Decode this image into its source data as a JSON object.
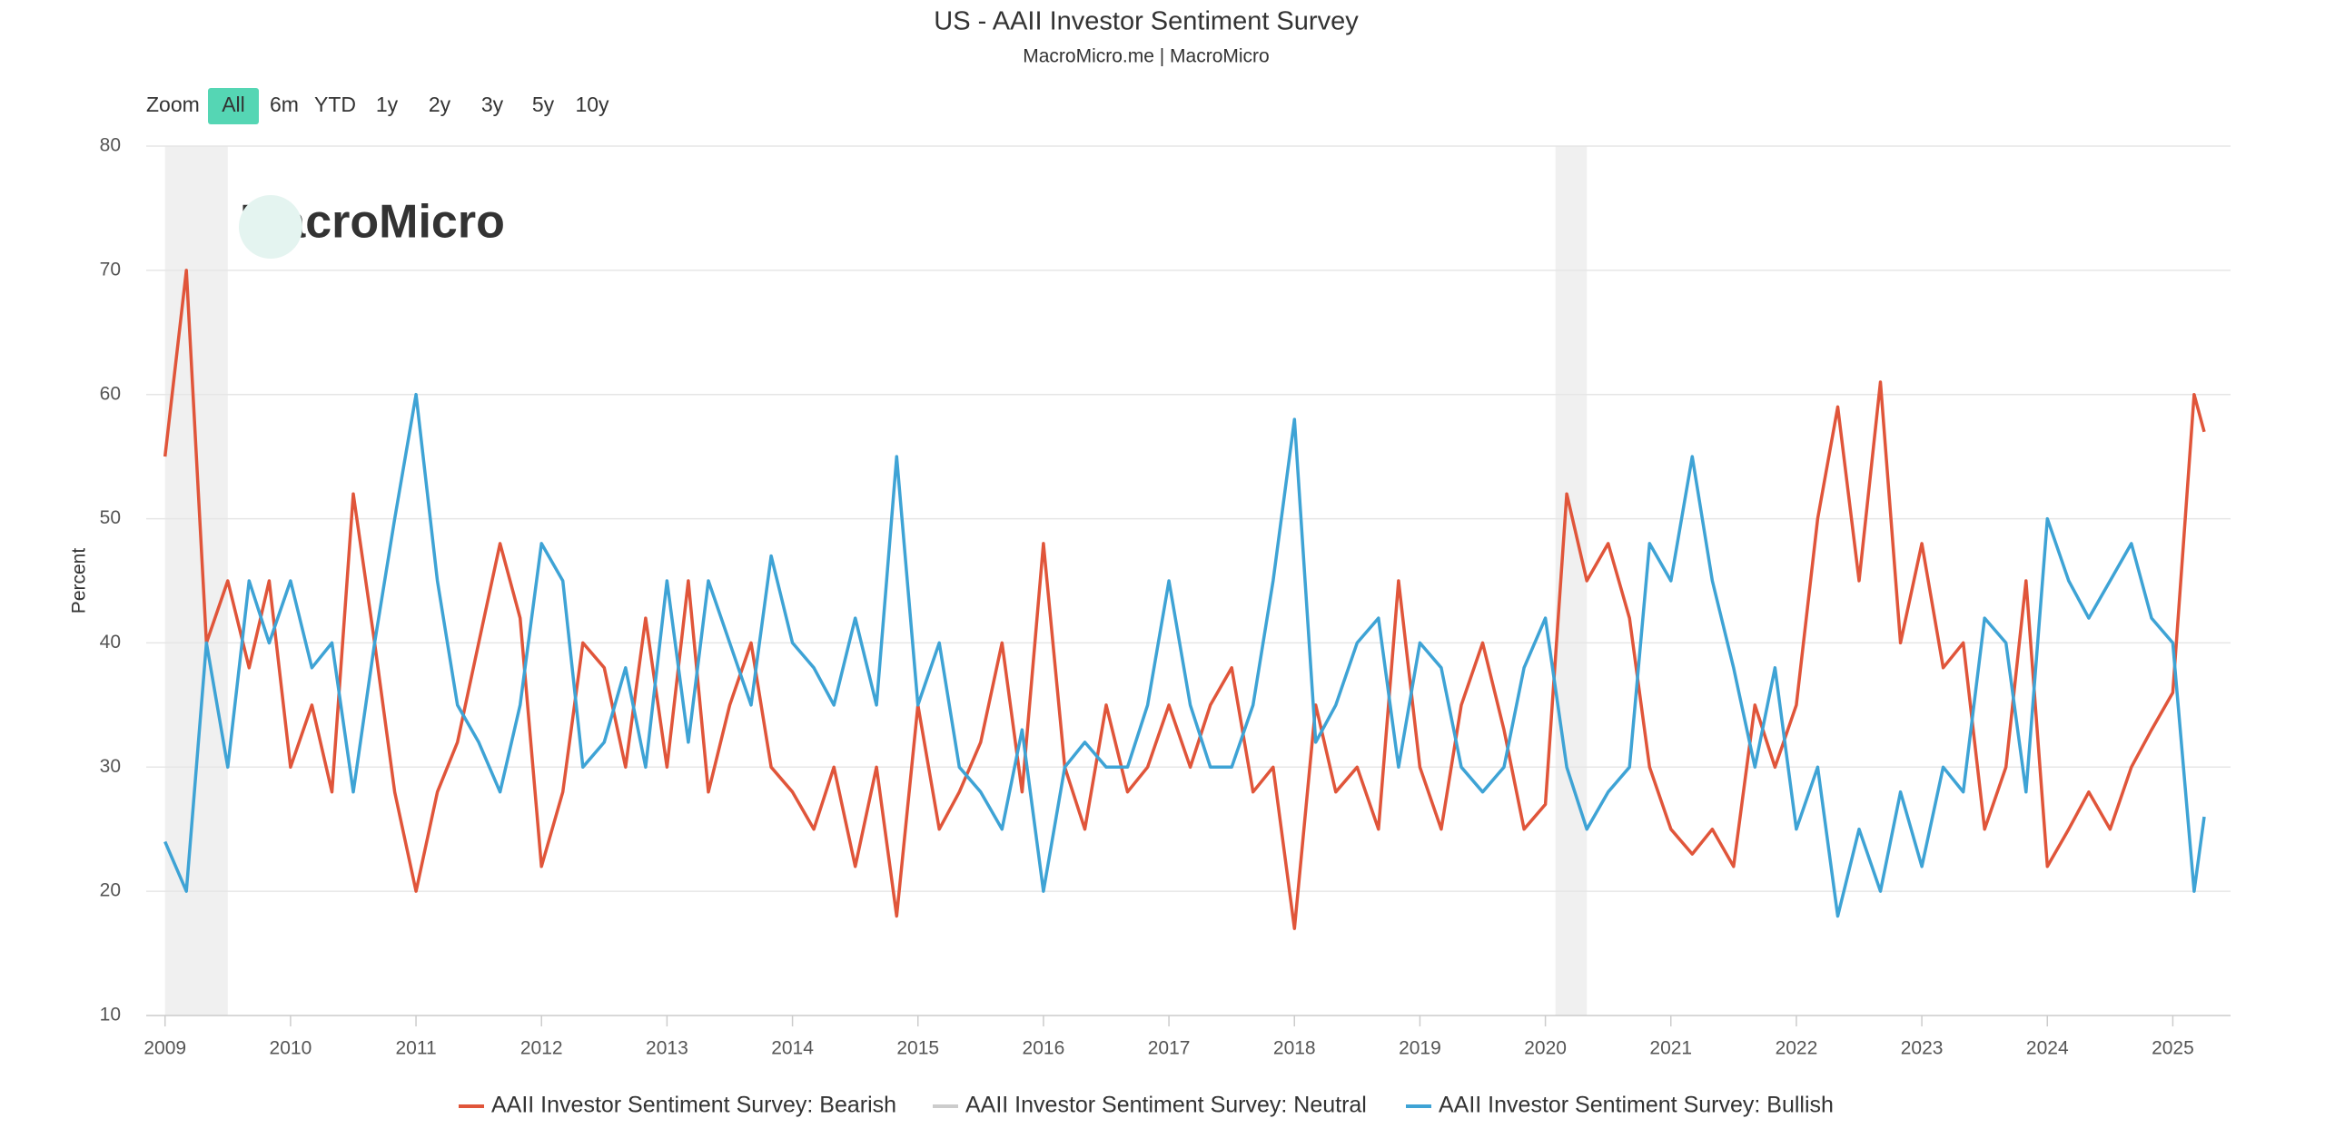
{
  "range_selector": {
    "label": "Zoom",
    "buttons": [
      "All",
      "6m",
      "YTD",
      "1y",
      "2y",
      "3y",
      "5y",
      "10y"
    ],
    "selected": 0
  },
  "watermark": "MacroMicro",
  "chart_data": {
    "type": "line",
    "title": "US - AAII Investor Sentiment Survey",
    "subtitle": "MacroMicro.me | MacroMicro",
    "y_label": "Percent",
    "grid": true,
    "xlim": [
      2008.85,
      2025.46
    ],
    "xticks": [
      2009,
      2010,
      2011,
      2012,
      2013,
      2014,
      2015,
      2016,
      2017,
      2018,
      2019,
      2020,
      2021,
      2022,
      2023,
      2024,
      2025
    ],
    "ylim": [
      10,
      80
    ],
    "yticks": [
      10,
      20,
      30,
      40,
      50,
      60,
      70,
      80
    ],
    "shaded_ranges": [
      {
        "from": 2009.0,
        "to": 2009.5
      },
      {
        "from": 2020.08,
        "to": 2020.33
      }
    ],
    "x": [
      2009.0,
      2009.17,
      2009.33,
      2009.5,
      2009.67,
      2009.83,
      2010.0,
      2010.17,
      2010.33,
      2010.5,
      2010.67,
      2010.83,
      2011.0,
      2011.17,
      2011.33,
      2011.5,
      2011.67,
      2011.83,
      2012.0,
      2012.17,
      2012.33,
      2012.5,
      2012.67,
      2012.83,
      2013.0,
      2013.17,
      2013.33,
      2013.5,
      2013.67,
      2013.83,
      2014.0,
      2014.17,
      2014.33,
      2014.5,
      2014.67,
      2014.83,
      2015.0,
      2015.17,
      2015.33,
      2015.5,
      2015.67,
      2015.83,
      2016.0,
      2016.17,
      2016.33,
      2016.5,
      2016.67,
      2016.83,
      2017.0,
      2017.17,
      2017.33,
      2017.5,
      2017.67,
      2017.83,
      2018.0,
      2018.17,
      2018.33,
      2018.5,
      2018.67,
      2018.83,
      2019.0,
      2019.17,
      2019.33,
      2019.5,
      2019.67,
      2019.83,
      2020.0,
      2020.17,
      2020.33,
      2020.5,
      2020.67,
      2020.83,
      2021.0,
      2021.17,
      2021.33,
      2021.5,
      2021.67,
      2021.83,
      2022.0,
      2022.17,
      2022.33,
      2022.5,
      2022.67,
      2022.83,
      2023.0,
      2023.17,
      2023.33,
      2023.5,
      2023.67,
      2023.83,
      2024.0,
      2024.17,
      2024.33,
      2024.5,
      2024.67,
      2024.83,
      2025.0,
      2025.17,
      2025.25
    ],
    "series": [
      {
        "name": "AAII Investor Sentiment Survey: Bearish",
        "color": "#e0553a",
        "visible": true,
        "values": [
          55,
          70,
          40,
          45,
          38,
          45,
          30,
          35,
          28,
          52,
          40,
          28,
          20,
          28,
          32,
          40,
          48,
          42,
          22,
          28,
          40,
          38,
          30,
          42,
          30,
          45,
          28,
          35,
          40,
          30,
          28,
          25,
          30,
          22,
          30,
          18,
          35,
          25,
          28,
          32,
          40,
          28,
          48,
          30,
          25,
          35,
          28,
          30,
          35,
          30,
          35,
          38,
          28,
          30,
          17,
          35,
          28,
          30,
          25,
          45,
          30,
          25,
          35,
          40,
          33,
          25,
          27,
          52,
          45,
          48,
          42,
          30,
          25,
          23,
          25,
          22,
          35,
          30,
          35,
          50,
          59,
          45,
          61,
          40,
          48,
          38,
          40,
          25,
          30,
          45,
          22,
          25,
          28,
          25,
          30,
          33,
          36,
          60,
          57
        ]
      },
      {
        "name": "AAII Investor Sentiment Survey: Neutral",
        "color": "#cccccc",
        "visible": false
      },
      {
        "name": "AAII Investor Sentiment Survey: Bullish",
        "color": "#3ea3d5",
        "visible": true,
        "values": [
          24,
          20,
          40,
          30,
          45,
          40,
          45,
          38,
          40,
          28,
          40,
          50,
          60,
          45,
          35,
          32,
          28,
          35,
          48,
          45,
          30,
          32,
          38,
          30,
          45,
          32,
          45,
          40,
          35,
          47,
          40,
          38,
          35,
          42,
          35,
          55,
          35,
          40,
          30,
          28,
          25,
          33,
          20,
          30,
          32,
          30,
          30,
          35,
          45,
          35,
          30,
          30,
          35,
          45,
          58,
          32,
          35,
          40,
          42,
          30,
          40,
          38,
          30,
          28,
          30,
          38,
          42,
          30,
          25,
          28,
          30,
          48,
          45,
          55,
          45,
          38,
          30,
          38,
          25,
          30,
          18,
          25,
          20,
          28,
          22,
          30,
          28,
          42,
          40,
          28,
          50,
          45,
          42,
          45,
          48,
          42,
          40,
          20,
          26
        ]
      }
    ]
  }
}
